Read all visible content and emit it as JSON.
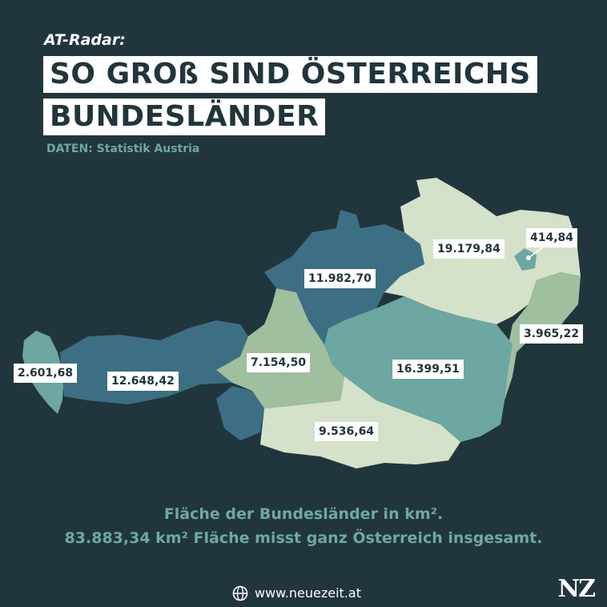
{
  "header": {
    "kicker": "AT-Radar:",
    "title_line1": "SO GROß SIND ÖSTERREICHS",
    "title_line2": "BUNDESLÄNDER",
    "source": "DATEN: Statistik Austria"
  },
  "colors": {
    "background": "#21353d",
    "dark_teal": "#3c6f84",
    "mid_teal": "#6ca7a2",
    "sage": "#9fbf9f",
    "pale": "#d4e2c9",
    "text": "#6ea8a1"
  },
  "map": {
    "unit": "km²",
    "states": [
      {
        "area": "2.601,68",
        "color": "mid_teal"
      },
      {
        "area": "12.648,42",
        "color": "dark_teal"
      },
      {
        "area": "7.154,50",
        "color": "sage"
      },
      {
        "area": "11.982,70",
        "color": "dark_teal"
      },
      {
        "area": "19.179,84",
        "color": "pale"
      },
      {
        "area": "414,84",
        "color": "mid_teal"
      },
      {
        "area": "3.965,22",
        "color": "sage"
      },
      {
        "area": "16.399,51",
        "color": "mid_teal"
      },
      {
        "area": "9.536,64",
        "color": "pale"
      }
    ]
  },
  "notes": {
    "line1": "Fläche der Bundesländer in km².",
    "line2": "83.883,34 km² Fläche misst ganz Österreich insgesamt."
  },
  "footer": {
    "icon": "globe-icon",
    "url": "www.neuezeit.at",
    "logo": "NZ"
  }
}
